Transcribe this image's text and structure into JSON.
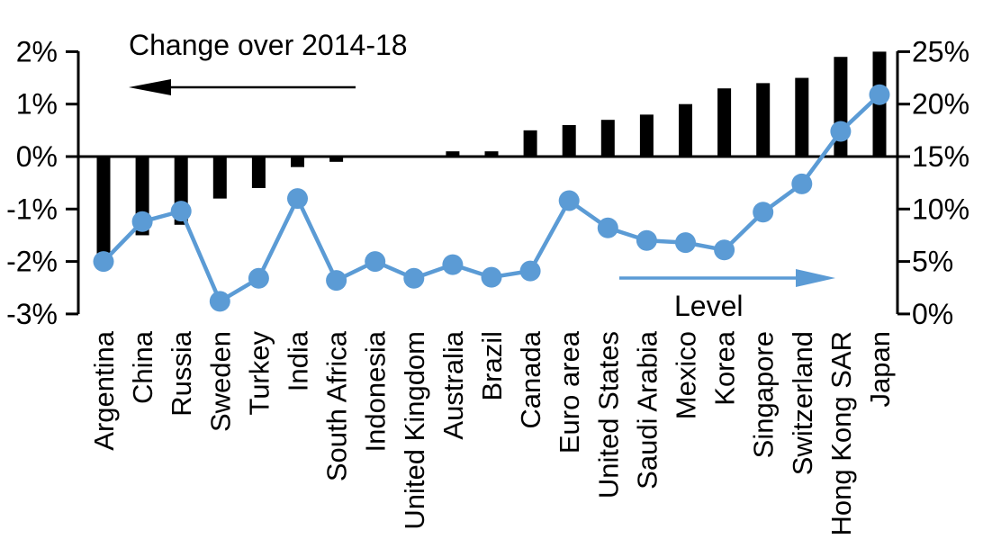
{
  "chart_data": {
    "type": "combo",
    "title": "Change over 2014-18",
    "categories": [
      "Argentina",
      "China",
      "Russia",
      "Sweden",
      "Turkey",
      "India",
      "South Africa",
      "Indonesia",
      "United Kingdom",
      "Australia",
      "Brazil",
      "Canada",
      "Euro area",
      "United States",
      "Saudi Arabia",
      "Mexico",
      "Korea",
      "Singapore",
      "Switzerland",
      "Hong Kong SAR",
      "Japan"
    ],
    "series": [
      {
        "name": "Change over 2014-18",
        "type": "bar",
        "axis": "left",
        "color": "#000000",
        "values": [
          -1.85,
          -1.5,
          -1.3,
          -0.8,
          -0.6,
          -0.2,
          -0.1,
          0,
          0,
          0.1,
          0.1,
          0.5,
          0.6,
          0.7,
          0.8,
          1.0,
          1.3,
          1.4,
          1.5,
          1.9,
          2.0
        ]
      },
      {
        "name": "Level",
        "type": "line",
        "axis": "right",
        "color": "#5b9bd5",
        "values": [
          5.0,
          8.8,
          9.8,
          1.2,
          3.4,
          11.0,
          3.2,
          5.0,
          3.4,
          4.7,
          3.5,
          4.1,
          10.8,
          8.2,
          7.0,
          6.8,
          6.1,
          9.7,
          12.4,
          17.4,
          20.9
        ]
      }
    ],
    "left_axis": {
      "min": -3,
      "max": 2,
      "tick_labels": [
        "2%",
        "1%",
        "0%",
        "-1%",
        "-2%",
        "-3%"
      ],
      "tick_values": [
        2,
        1,
        0,
        -1,
        -2,
        -3
      ]
    },
    "right_axis": {
      "min": 0,
      "max": 25,
      "tick_labels": [
        "25%",
        "20%",
        "15%",
        "10%",
        "5%",
        "0%"
      ],
      "tick_values": [
        25,
        20,
        15,
        10,
        5,
        0
      ]
    },
    "annotations": [
      {
        "text": "Change over 2014-18",
        "arrow_direction": "left",
        "color": "#000000"
      },
      {
        "text": "Level",
        "arrow_direction": "right",
        "color": "#5b9bd5"
      }
    ],
    "grid": false,
    "legend": "none"
  }
}
